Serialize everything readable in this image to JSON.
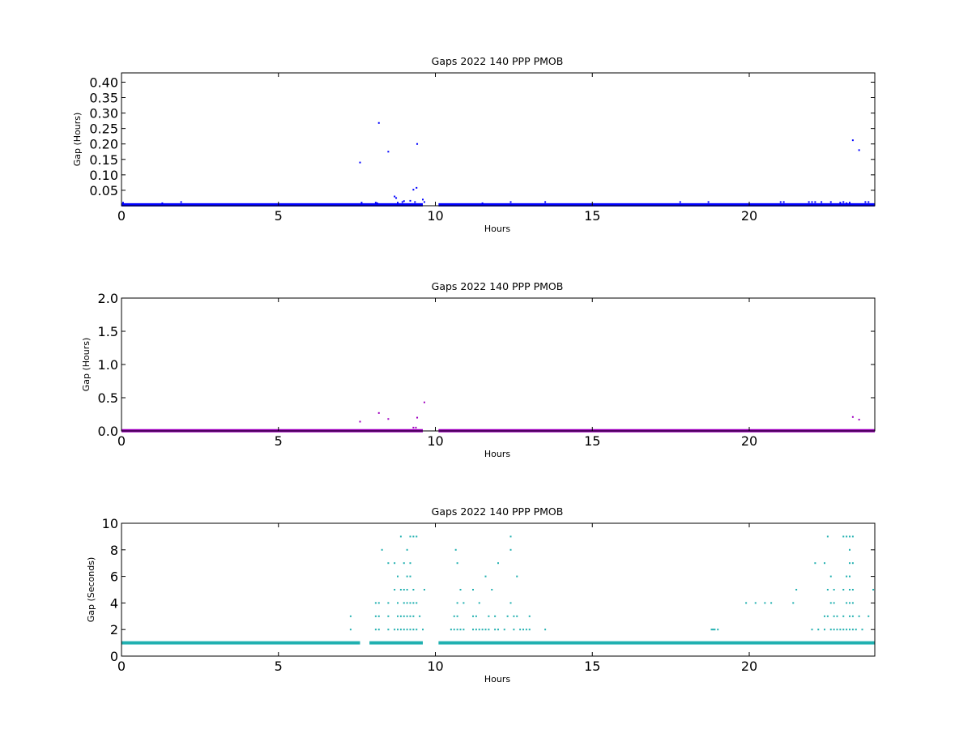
{
  "chart_data": [
    {
      "type": "scatter",
      "title": "Gaps 2022 140 PPP  PMOB",
      "xlabel": "Hours",
      "ylabel": "Gap (Hours)",
      "xlim": [
        0,
        24
      ],
      "ylim": [
        0,
        0.43
      ],
      "xticks": [
        "0",
        "5",
        "10",
        "15",
        "20"
      ],
      "yticks": [
        "0.05",
        "0.10",
        "0.15",
        "0.20",
        "0.25",
        "0.30",
        "0.35",
        "0.40"
      ],
      "color": "#0000ff",
      "baseline": {
        "value": 0.003,
        "ranges": [
          [
            0,
            7.6
          ],
          [
            7.6,
            9.6
          ],
          [
            10.1,
            24
          ]
        ]
      },
      "points": [
        [
          0.05,
          0.01
        ],
        [
          1.3,
          0.008
        ],
        [
          1.9,
          0.012
        ],
        [
          7.6,
          0.14
        ],
        [
          7.65,
          0.01
        ],
        [
          8.2,
          0.268
        ],
        [
          8.1,
          0.01
        ],
        [
          8.15,
          0.008
        ],
        [
          8.5,
          0.175
        ],
        [
          8.7,
          0.03
        ],
        [
          8.75,
          0.025
        ],
        [
          8.8,
          0.01
        ],
        [
          8.95,
          0.012
        ],
        [
          9.0,
          0.015
        ],
        [
          9.2,
          0.016
        ],
        [
          9.3,
          0.052
        ],
        [
          9.4,
          0.058
        ],
        [
          9.42,
          0.2
        ],
        [
          9.35,
          0.012
        ],
        [
          9.6,
          0.02
        ],
        [
          9.65,
          0.012
        ],
        [
          11.5,
          0.008
        ],
        [
          12.4,
          0.012
        ],
        [
          13.5,
          0.012
        ],
        [
          17.8,
          0.012
        ],
        [
          18.7,
          0.012
        ],
        [
          21.0,
          0.012
        ],
        [
          21.1,
          0.012
        ],
        [
          21.9,
          0.012
        ],
        [
          22.0,
          0.012
        ],
        [
          22.1,
          0.012
        ],
        [
          22.3,
          0.012
        ],
        [
          22.6,
          0.012
        ],
        [
          22.9,
          0.01
        ],
        [
          23.0,
          0.012
        ],
        [
          23.1,
          0.008
        ],
        [
          23.2,
          0.01
        ],
        [
          23.3,
          0.212
        ],
        [
          23.5,
          0.18
        ],
        [
          23.7,
          0.012
        ],
        [
          23.8,
          0.012
        ]
      ]
    },
    {
      "type": "scatter",
      "title": "Gaps 2022 140 PPP  PMOB",
      "xlabel": "Hours",
      "ylabel": "Gap (Hours)",
      "xlim": [
        0,
        24
      ],
      "ylim": [
        0,
        2.0
      ],
      "xticks": [
        "0",
        "5",
        "10",
        "15",
        "20"
      ],
      "yticks": [
        "0.0",
        "0.5",
        "1.0",
        "1.5",
        "2.0"
      ],
      "color": "#a000c0",
      "baseline": {
        "value": 0.003,
        "ranges": [
          [
            0,
            7.6
          ],
          [
            7.6,
            9.6
          ],
          [
            10.1,
            24
          ]
        ]
      },
      "points": [
        [
          7.6,
          0.14
        ],
        [
          8.2,
          0.27
        ],
        [
          8.5,
          0.18
        ],
        [
          9.3,
          0.05
        ],
        [
          9.38,
          0.05
        ],
        [
          9.42,
          0.2
        ],
        [
          9.65,
          0.43
        ],
        [
          23.3,
          0.21
        ],
        [
          23.5,
          0.17
        ]
      ]
    },
    {
      "type": "scatter",
      "title": "Gaps 2022 140 PPP  PMOB",
      "xlabel": "Hours",
      "ylabel": "Gap (Seconds)",
      "xlim": [
        0,
        24
      ],
      "ylim": [
        0,
        10
      ],
      "xticks": [
        "0",
        "5",
        "10",
        "15",
        "20"
      ],
      "yticks": [
        "0",
        "2",
        "4",
        "6",
        "8",
        "10"
      ],
      "color": "#20b0b0",
      "baseline": {
        "value": 1,
        "ranges": [
          [
            0,
            7.6
          ],
          [
            7.9,
            9.6
          ],
          [
            10.1,
            24
          ]
        ]
      },
      "points": [
        [
          7.3,
          3
        ],
        [
          7.3,
          2
        ],
        [
          8.1,
          4
        ],
        [
          8.2,
          4
        ],
        [
          8.1,
          3
        ],
        [
          8.2,
          3
        ],
        [
          8.1,
          2
        ],
        [
          8.2,
          2
        ],
        [
          8.3,
          8
        ],
        [
          8.5,
          7
        ],
        [
          8.5,
          4
        ],
        [
          8.5,
          3
        ],
        [
          8.5,
          2
        ],
        [
          8.7,
          7
        ],
        [
          8.7,
          5
        ],
        [
          8.7,
          2
        ],
        [
          8.8,
          6
        ],
        [
          8.8,
          4
        ],
        [
          8.8,
          3
        ],
        [
          8.8,
          2
        ],
        [
          8.9,
          9
        ],
        [
          8.9,
          5
        ],
        [
          8.9,
          3
        ],
        [
          8.9,
          2
        ],
        [
          9.0,
          7
        ],
        [
          9.0,
          5
        ],
        [
          9.0,
          4
        ],
        [
          9.0,
          3
        ],
        [
          9.0,
          2
        ],
        [
          9.1,
          8
        ],
        [
          9.1,
          6
        ],
        [
          9.1,
          5
        ],
        [
          9.1,
          4
        ],
        [
          9.1,
          3
        ],
        [
          9.1,
          2
        ],
        [
          9.2,
          9
        ],
        [
          9.2,
          7
        ],
        [
          9.2,
          6
        ],
        [
          9.2,
          4
        ],
        [
          9.2,
          3
        ],
        [
          9.2,
          2
        ],
        [
          9.3,
          9
        ],
        [
          9.3,
          5
        ],
        [
          9.3,
          4
        ],
        [
          9.3,
          3
        ],
        [
          9.3,
          2
        ],
        [
          9.4,
          9
        ],
        [
          9.4,
          4
        ],
        [
          9.4,
          2
        ],
        [
          9.5,
          3
        ],
        [
          9.6,
          2
        ],
        [
          9.65,
          5
        ],
        [
          10.5,
          2
        ],
        [
          10.6,
          3
        ],
        [
          10.6,
          2
        ],
        [
          10.65,
          8
        ],
        [
          10.7,
          7
        ],
        [
          10.7,
          4
        ],
        [
          10.7,
          3
        ],
        [
          10.7,
          2
        ],
        [
          10.8,
          5
        ],
        [
          10.8,
          2
        ],
        [
          10.9,
          4
        ],
        [
          10.9,
          2
        ],
        [
          11.2,
          5
        ],
        [
          11.2,
          3
        ],
        [
          11.2,
          2
        ],
        [
          11.3,
          3
        ],
        [
          11.3,
          2
        ],
        [
          11.4,
          4
        ],
        [
          11.4,
          2
        ],
        [
          11.5,
          2
        ],
        [
          11.6,
          6
        ],
        [
          11.6,
          2
        ],
        [
          11.7,
          3
        ],
        [
          11.7,
          2
        ],
        [
          11.8,
          5
        ],
        [
          11.9,
          3
        ],
        [
          11.9,
          2
        ],
        [
          12.0,
          7
        ],
        [
          12.0,
          2
        ],
        [
          12.2,
          2
        ],
        [
          12.3,
          3
        ],
        [
          12.4,
          9
        ],
        [
          12.4,
          8
        ],
        [
          12.4,
          4
        ],
        [
          12.5,
          3
        ],
        [
          12.5,
          2
        ],
        [
          12.6,
          6
        ],
        [
          12.6,
          3
        ],
        [
          12.7,
          2
        ],
        [
          12.8,
          2
        ],
        [
          12.9,
          2
        ],
        [
          13.0,
          3
        ],
        [
          13.0,
          2
        ],
        [
          13.5,
          2
        ],
        [
          18.8,
          2
        ],
        [
          18.85,
          2
        ],
        [
          18.9,
          2
        ],
        [
          19.0,
          2
        ],
        [
          19.9,
          4
        ],
        [
          20.2,
          4
        ],
        [
          20.5,
          4
        ],
        [
          20.7,
          4
        ],
        [
          21.4,
          4
        ],
        [
          21.5,
          5
        ],
        [
          22.0,
          2
        ],
        [
          22.1,
          7
        ],
        [
          22.2,
          2
        ],
        [
          22.4,
          7
        ],
        [
          22.4,
          3
        ],
        [
          22.4,
          2
        ],
        [
          22.5,
          9
        ],
        [
          22.5,
          5
        ],
        [
          22.5,
          3
        ],
        [
          22.6,
          6
        ],
        [
          22.6,
          4
        ],
        [
          22.6,
          2
        ],
        [
          22.7,
          5
        ],
        [
          22.7,
          4
        ],
        [
          22.7,
          3
        ],
        [
          22.7,
          2
        ],
        [
          22.8,
          3
        ],
        [
          22.8,
          2
        ],
        [
          22.9,
          2
        ],
        [
          23.0,
          9
        ],
        [
          23.0,
          5
        ],
        [
          23.0,
          3
        ],
        [
          23.0,
          2
        ],
        [
          23.1,
          9
        ],
        [
          23.1,
          6
        ],
        [
          23.1,
          4
        ],
        [
          23.1,
          2
        ],
        [
          23.2,
          9
        ],
        [
          23.2,
          8
        ],
        [
          23.2,
          7
        ],
        [
          23.2,
          6
        ],
        [
          23.2,
          5
        ],
        [
          23.2,
          4
        ],
        [
          23.2,
          3
        ],
        [
          23.2,
          2
        ],
        [
          23.3,
          9
        ],
        [
          23.3,
          7
        ],
        [
          23.3,
          5
        ],
        [
          23.3,
          4
        ],
        [
          23.3,
          3
        ],
        [
          23.3,
          2
        ],
        [
          23.4,
          2
        ],
        [
          23.5,
          3
        ],
        [
          23.6,
          2
        ],
        [
          23.8,
          3
        ],
        [
          23.95,
          5
        ]
      ]
    }
  ]
}
